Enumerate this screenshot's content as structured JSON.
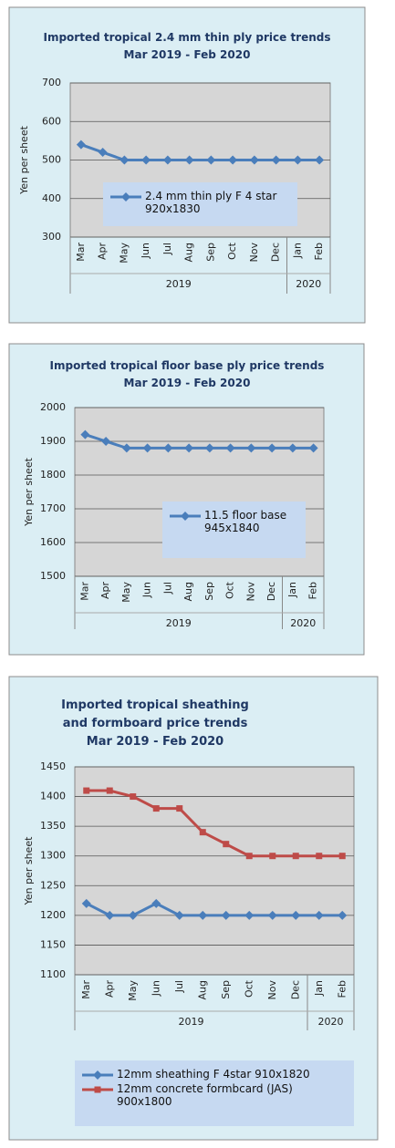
{
  "chart_data": [
    {
      "type": "line",
      "title": "Imported tropical 2.4 mm thin ply price trends",
      "subtitle": "Mar 2019 - Feb 2020",
      "y_label": "Yen per sheet",
      "categories": [
        "Mar",
        "Apr",
        "May",
        "Jun",
        "Jul",
        "Aug",
        "Sep",
        "Oct",
        "Nov",
        "Dec",
        "Jan",
        "Feb"
      ],
      "x_groups": [
        {
          "label": "2019",
          "count": 10
        },
        {
          "label": "2020",
          "count": 2
        }
      ],
      "series": [
        {
          "name": "2.4 mm thin ply F 4 star 920x1830",
          "color": "#4a7ebb",
          "marker": "diamond",
          "values": [
            540,
            520,
            500,
            500,
            500,
            500,
            500,
            500,
            500,
            500,
            500,
            500
          ]
        }
      ],
      "ylim": [
        300,
        700
      ],
      "yticks": [
        300,
        400,
        500,
        600,
        700
      ],
      "grid": true
    },
    {
      "type": "line",
      "title": "Imported tropical floor base ply price trends",
      "subtitle": "Mar 2019 - Feb 2020",
      "y_label": "Yen per sheet",
      "categories": [
        "Mar",
        "Apr",
        "May",
        "Jun",
        "Jul",
        "Aug",
        "Sep",
        "Oct",
        "Nov",
        "Dec",
        "Jan",
        "Feb"
      ],
      "x_groups": [
        {
          "label": "2019",
          "count": 10
        },
        {
          "label": "2020",
          "count": 2
        }
      ],
      "series": [
        {
          "name": "11.5 floor base 945x1840",
          "color": "#4a7ebb",
          "marker": "diamond",
          "values": [
            1920,
            1900,
            1880,
            1880,
            1880,
            1880,
            1880,
            1880,
            1880,
            1880,
            1880,
            1880
          ]
        }
      ],
      "ylim": [
        1500,
        2000
      ],
      "yticks": [
        1500,
        1600,
        1700,
        1800,
        1900,
        2000
      ],
      "grid": true
    },
    {
      "type": "line",
      "title": "Imported tropical sheathing and formboard price trends",
      "subtitle": "Mar 2019 - Feb 2020",
      "y_label": "Yen per sheet",
      "categories": [
        "Mar",
        "Apr",
        "May",
        "Jun",
        "Jul",
        "Aug",
        "Sep",
        "Oct",
        "Nov",
        "Dec",
        "Jan",
        "Feb"
      ],
      "x_groups": [
        {
          "label": "2019",
          "count": 10
        },
        {
          "label": "2020",
          "count": 2
        }
      ],
      "series": [
        {
          "name": "12mm sheathing F 4star 910x1820",
          "color": "#4a7ebb",
          "marker": "diamond",
          "values": [
            1220,
            1200,
            1200,
            1220,
            1200,
            1200,
            1200,
            1200,
            1200,
            1200,
            1200,
            1200
          ]
        },
        {
          "name": "12mm concrete formbcard (JAS) 900x1800",
          "color": "#be4b48",
          "marker": "square",
          "values": [
            1410,
            1410,
            1400,
            1380,
            1380,
            1340,
            1320,
            1300,
            1300,
            1300,
            1300,
            1300
          ]
        }
      ],
      "ylim": [
        1100,
        1450
      ],
      "yticks": [
        1100,
        1150,
        1200,
        1250,
        1300,
        1350,
        1400,
        1450
      ],
      "grid": true
    }
  ]
}
